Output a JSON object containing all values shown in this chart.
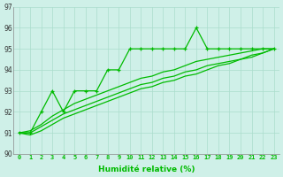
{
  "xlabel": "Humidité relative (%)",
  "background_color": "#cff0e8",
  "grid_color": "#aaddcc",
  "line_color": "#00bb00",
  "xlim": [
    -0.5,
    23.5
  ],
  "ylim": [
    90,
    97
  ],
  "yticks": [
    90,
    91,
    92,
    93,
    94,
    95,
    96,
    97
  ],
  "xticks": [
    0,
    1,
    2,
    3,
    4,
    5,
    6,
    7,
    8,
    9,
    10,
    11,
    12,
    13,
    14,
    15,
    16,
    17,
    18,
    19,
    20,
    21,
    22,
    23
  ],
  "series_marked": [
    91,
    91,
    92,
    93,
    92,
    93,
    93,
    93,
    94,
    94,
    95,
    95,
    95,
    95,
    95,
    95,
    96,
    95,
    95,
    95,
    95,
    95,
    95,
    95
  ],
  "series_smooth": [
    [
      91.0,
      91.1,
      91.4,
      91.8,
      92.1,
      92.4,
      92.6,
      92.8,
      93.0,
      93.2,
      93.4,
      93.6,
      93.7,
      93.9,
      94.0,
      94.2,
      94.4,
      94.5,
      94.6,
      94.7,
      94.8,
      94.9,
      95.0,
      95.0
    ],
    [
      91.0,
      91.0,
      91.3,
      91.6,
      91.9,
      92.1,
      92.3,
      92.5,
      92.7,
      92.9,
      93.1,
      93.3,
      93.4,
      93.6,
      93.7,
      93.9,
      94.0,
      94.2,
      94.3,
      94.4,
      94.5,
      94.7,
      94.8,
      95.0
    ],
    [
      91.0,
      90.9,
      91.1,
      91.4,
      91.7,
      91.9,
      92.1,
      92.3,
      92.5,
      92.7,
      92.9,
      93.1,
      93.2,
      93.4,
      93.5,
      93.7,
      93.8,
      94.0,
      94.2,
      94.3,
      94.5,
      94.6,
      94.8,
      95.0
    ]
  ]
}
